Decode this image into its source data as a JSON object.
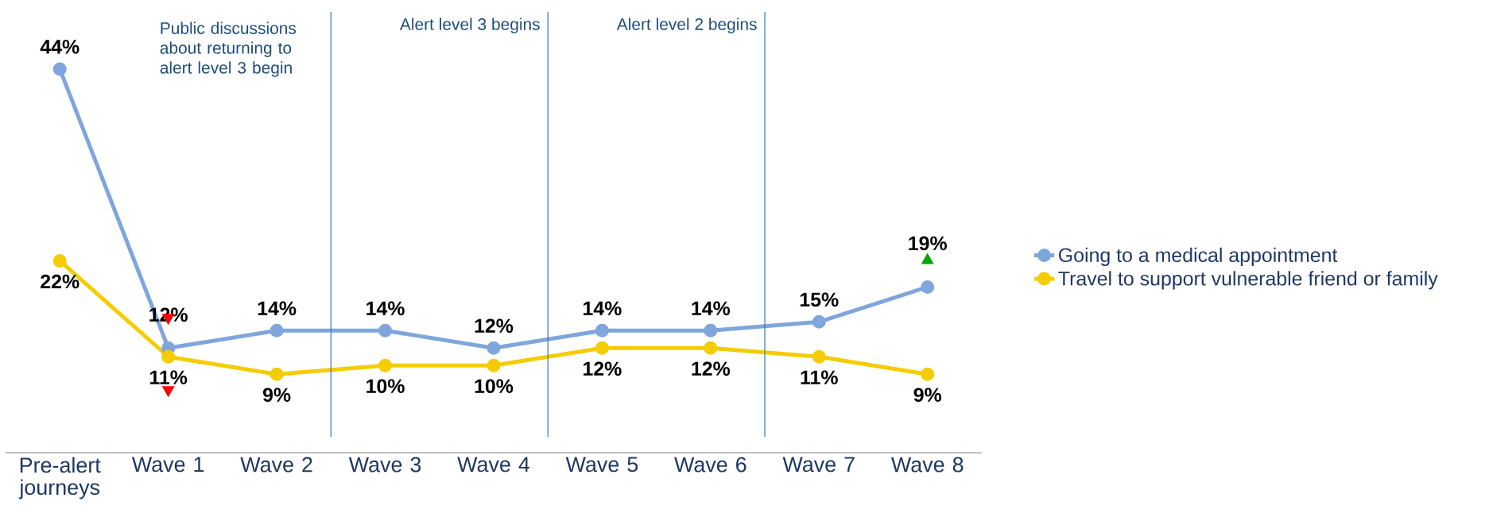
{
  "chart_data": {
    "type": "line",
    "categories": [
      "Pre-alert journeys",
      "Wave 1",
      "Wave 2",
      "Wave 3",
      "Wave 4",
      "Wave 5",
      "Wave 6",
      "Wave 7",
      "Wave 8"
    ],
    "series": [
      {
        "name": "Going to a medical appointment",
        "color": "#7fa6dc",
        "values": [
          44,
          12,
          14,
          14,
          12,
          14,
          14,
          15,
          19
        ],
        "value_labels": [
          "44%",
          "12%",
          "14%",
          "14%",
          "12%",
          "14%",
          "14%",
          "15%",
          "19%"
        ]
      },
      {
        "name": "Travel to support vulnerable friend or family",
        "color": "#f5cc00",
        "values": [
          22,
          11,
          9,
          10,
          10,
          12,
          12,
          11,
          9
        ],
        "value_labels": [
          "22%",
          "11%",
          "9%",
          "10%",
          "10%",
          "12%",
          "12%",
          "11%",
          "9%"
        ]
      }
    ],
    "annotations": [
      "Public discussions about returning to alert level 3 begin",
      "Alert level 3 begins",
      "Alert level 2 begins"
    ],
    "marker": "circle",
    "line_style": "solid",
    "legend": "right",
    "grid": false,
    "tick_labels": "x"
  }
}
